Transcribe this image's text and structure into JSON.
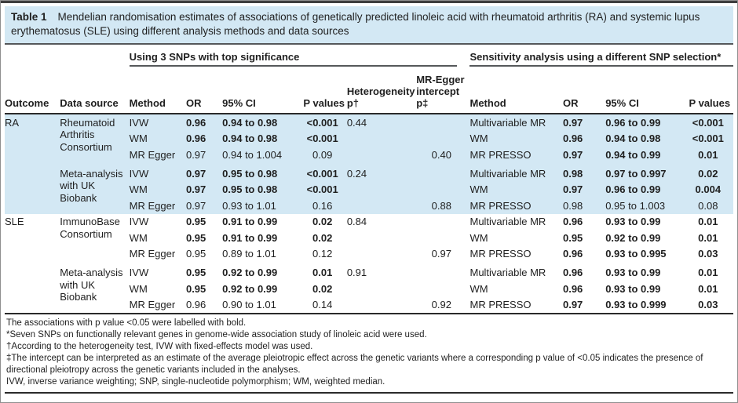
{
  "title": {
    "label": "Table 1",
    "caption": "Mendelian randomisation estimates of associations of genetically predicted linoleic acid with rheumatoid arthritis (RA) and systemic lupus erythematosus (SLE) using different analysis methods and data sources"
  },
  "colors": {
    "row_highlight": "#d3e8f4",
    "rule_dark": "#2a2a2a",
    "rule_gray": "#55585a",
    "text": "#1f1f1f",
    "frame_border": "#8f8f8f"
  },
  "table": {
    "group_headers": [
      "Using 3 SNPs with top significance",
      "Sensitivity analysis using a different SNP selection*"
    ],
    "columns": [
      "Outcome",
      "Data source",
      "Method",
      "OR",
      "95% CI",
      "P values",
      "Heterogeneity p†",
      "MR-Egger intercept p‡",
      "Method",
      "OR",
      "95% CI",
      "P values"
    ],
    "rows": [
      {
        "shaded": true,
        "outcome": {
          "text": "RA",
          "rowspan": 6
        },
        "source": {
          "text": "Rheumatoid Arthritis Consortium",
          "rowspan": 3
        },
        "cells": [
          {
            "t": "IVW"
          },
          {
            "t": "0.96",
            "b": true
          },
          {
            "t": "0.94 to 0.98",
            "b": true
          },
          {
            "t": "<0.001",
            "b": true
          },
          {
            "t": "0.44"
          },
          {
            "t": ""
          },
          {
            "t": "Multivariable MR"
          },
          {
            "t": "0.97",
            "b": true
          },
          {
            "t": "0.96 to 0.99",
            "b": true
          },
          {
            "t": "<0.001",
            "b": true
          }
        ]
      },
      {
        "shaded": true,
        "cells": [
          {
            "t": "WM"
          },
          {
            "t": "0.96",
            "b": true
          },
          {
            "t": "0.94 to 0.98",
            "b": true
          },
          {
            "t": "<0.001",
            "b": true
          },
          {
            "t": ""
          },
          {
            "t": ""
          },
          {
            "t": "WM"
          },
          {
            "t": "0.96",
            "b": true
          },
          {
            "t": "0.94 to 0.98",
            "b": true
          },
          {
            "t": "<0.001",
            "b": true
          }
        ]
      },
      {
        "shaded": true,
        "cells": [
          {
            "t": "MR Egger"
          },
          {
            "t": "0.97"
          },
          {
            "t": "0.94 to 1.004"
          },
          {
            "t": "0.09"
          },
          {
            "t": ""
          },
          {
            "t": "0.40"
          },
          {
            "t": "MR PRESSO"
          },
          {
            "t": "0.97",
            "b": true
          },
          {
            "t": "0.94 to 0.99",
            "b": true
          },
          {
            "t": "0.01",
            "b": true
          }
        ]
      },
      {
        "shaded": true,
        "group_start": true,
        "source": {
          "text": "Meta-analysis with UK Biobank",
          "rowspan": 3
        },
        "cells": [
          {
            "t": "IVW"
          },
          {
            "t": "0.97",
            "b": true
          },
          {
            "t": "0.95 to 0.98",
            "b": true
          },
          {
            "t": "<0.001",
            "b": true
          },
          {
            "t": "0.24"
          },
          {
            "t": ""
          },
          {
            "t": "Multivariable MR"
          },
          {
            "t": "0.98",
            "b": true
          },
          {
            "t": "0.97 to 0.997",
            "b": true
          },
          {
            "t": "0.02",
            "b": true
          }
        ]
      },
      {
        "shaded": true,
        "cells": [
          {
            "t": "WM"
          },
          {
            "t": "0.97",
            "b": true
          },
          {
            "t": "0.95 to 0.98",
            "b": true
          },
          {
            "t": "<0.001",
            "b": true
          },
          {
            "t": ""
          },
          {
            "t": ""
          },
          {
            "t": "WM"
          },
          {
            "t": "0.97",
            "b": true
          },
          {
            "t": "0.96 to 0.99",
            "b": true
          },
          {
            "t": "0.004",
            "b": true
          }
        ]
      },
      {
        "shaded": true,
        "cells": [
          {
            "t": "MR Egger"
          },
          {
            "t": "0.97"
          },
          {
            "t": "0.93 to 1.01"
          },
          {
            "t": "0.16"
          },
          {
            "t": ""
          },
          {
            "t": "0.88"
          },
          {
            "t": "MR PRESSO"
          },
          {
            "t": "0.98"
          },
          {
            "t": "0.95 to 1.003"
          },
          {
            "t": "0.08"
          }
        ]
      },
      {
        "outcome": {
          "text": "SLE",
          "rowspan": 6
        },
        "source": {
          "text": "ImmunoBase Consortium",
          "rowspan": 3
        },
        "cells": [
          {
            "t": "IVW"
          },
          {
            "t": "0.95",
            "b": true
          },
          {
            "t": "0.91 to 0.99",
            "b": true
          },
          {
            "t": "0.02",
            "b": true
          },
          {
            "t": "0.84"
          },
          {
            "t": ""
          },
          {
            "t": "Multivariable MR"
          },
          {
            "t": "0.96",
            "b": true
          },
          {
            "t": "0.93 to 0.99",
            "b": true
          },
          {
            "t": "0.01",
            "b": true
          }
        ]
      },
      {
        "cells": [
          {
            "t": "WM"
          },
          {
            "t": "0.95",
            "b": true
          },
          {
            "t": "0.91 to 0.99",
            "b": true
          },
          {
            "t": "0.02",
            "b": true
          },
          {
            "t": ""
          },
          {
            "t": ""
          },
          {
            "t": "WM"
          },
          {
            "t": "0.95",
            "b": true
          },
          {
            "t": "0.92 to 0.99",
            "b": true
          },
          {
            "t": "0.01",
            "b": true
          }
        ]
      },
      {
        "cells": [
          {
            "t": "MR Egger"
          },
          {
            "t": "0.95"
          },
          {
            "t": "0.89 to 1.01"
          },
          {
            "t": "0.12"
          },
          {
            "t": ""
          },
          {
            "t": "0.97"
          },
          {
            "t": "MR PRESSO"
          },
          {
            "t": "0.96",
            "b": true
          },
          {
            "t": "0.93 to 0.995",
            "b": true
          },
          {
            "t": "0.03",
            "b": true
          }
        ]
      },
      {
        "group_start": true,
        "source": {
          "text": "Meta-analysis with UK Biobank",
          "rowspan": 3
        },
        "cells": [
          {
            "t": "IVW"
          },
          {
            "t": "0.95",
            "b": true
          },
          {
            "t": "0.92 to 0.99",
            "b": true
          },
          {
            "t": "0.01",
            "b": true
          },
          {
            "t": "0.91"
          },
          {
            "t": ""
          },
          {
            "t": "Multivariable MR"
          },
          {
            "t": "0.96",
            "b": true
          },
          {
            "t": "0.93 to 0.99",
            "b": true
          },
          {
            "t": "0.01",
            "b": true
          }
        ]
      },
      {
        "cells": [
          {
            "t": "WM"
          },
          {
            "t": "0.95",
            "b": true
          },
          {
            "t": "0.92 to 0.99",
            "b": true
          },
          {
            "t": "0.02",
            "b": true
          },
          {
            "t": ""
          },
          {
            "t": ""
          },
          {
            "t": "WM"
          },
          {
            "t": "0.96",
            "b": true
          },
          {
            "t": "0.93 to 0.99",
            "b": true
          },
          {
            "t": "0.01",
            "b": true
          }
        ]
      },
      {
        "cells": [
          {
            "t": "MR Egger"
          },
          {
            "t": "0.96"
          },
          {
            "t": "0.90 to 1.01"
          },
          {
            "t": "0.14"
          },
          {
            "t": ""
          },
          {
            "t": "0.92"
          },
          {
            "t": "MR PRESSO"
          },
          {
            "t": "0.97",
            "b": true
          },
          {
            "t": "0.93 to 0.999",
            "b": true
          },
          {
            "t": "0.03",
            "b": true
          }
        ]
      }
    ]
  },
  "footnotes": [
    "The associations with p value <0.05 were labelled with bold.",
    "*Seven SNPs on functionally relevant genes in genome-wide association study of linoleic acid were used.",
    "†According to the heterogeneity test, IVW with fixed-effects model was used.",
    "‡The intercept can be interpreted as an estimate of the average pleiotropic effect across the genetic variants where a corresponding p value of <0.05 indicates the presence of directional pleiotropy across the genetic variants included in the analyses.",
    "IVW, inverse variance weighting; SNP, single-nucleotide polymorphism; WM, weighted median."
  ]
}
